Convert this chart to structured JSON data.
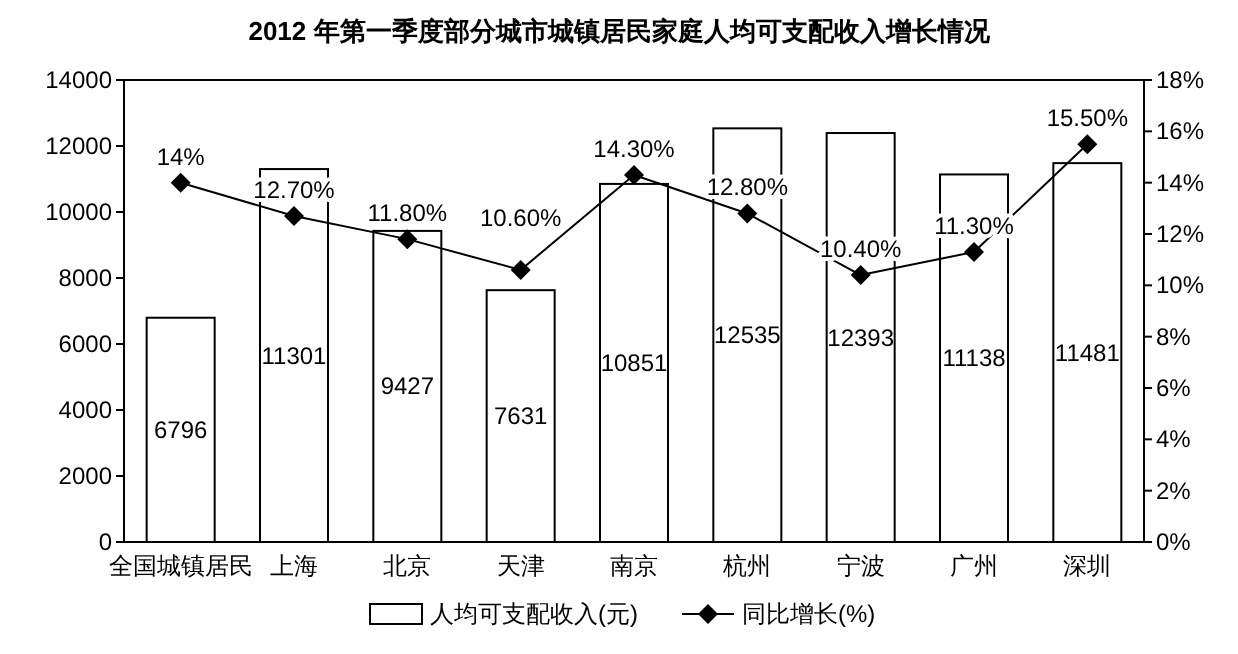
{
  "chart_data": {
    "type": "bar",
    "title": "2012 年第一季度部分城市城镇居民家庭人均可支配收入增长情况",
    "categories": [
      "全国城镇居民",
      "上海",
      "北京",
      "天津",
      "南京",
      "杭州",
      "宁波",
      "广州",
      "深圳"
    ],
    "series": [
      {
        "name": "人均可支配收入(元)",
        "color": "#ffffff",
        "values": [
          6796,
          11301,
          9427,
          7631,
          10851,
          12535,
          12393,
          11138,
          11481
        ]
      },
      {
        "name": "同比增长(%)",
        "type": "line",
        "axis": "y2",
        "color": "#000000",
        "marker": "diamond",
        "values": [
          14,
          12.7,
          11.8,
          10.6,
          14.3,
          12.8,
          10.4,
          11.3,
          15.5
        ],
        "value_labels": [
          "14%",
          "12.70%",
          "11.80%",
          "10.60%",
          "14.30%",
          "12.80%",
          "10.40%",
          "11.30%",
          "15.50%"
        ]
      }
    ],
    "data_labels": true,
    "ylim": [
      0,
      14000
    ],
    "yticks": [
      0,
      2000,
      4000,
      6000,
      8000,
      10000,
      12000,
      14000
    ],
    "y2lim": [
      0,
      18
    ],
    "y2ticks": [
      {
        "value": 0,
        "label": "0%"
      },
      {
        "value": 2,
        "label": "2%"
      },
      {
        "value": 4,
        "label": "4%"
      },
      {
        "value": 6,
        "label": "6%"
      },
      {
        "value": 8,
        "label": "8%"
      },
      {
        "value": 10,
        "label": "10%"
      },
      {
        "value": 12,
        "label": "12%"
      },
      {
        "value": 14,
        "label": "14%"
      },
      {
        "value": 16,
        "label": "16%"
      },
      {
        "value": 18,
        "label": "18%"
      }
    ],
    "grid": false,
    "legend": "bottom"
  }
}
